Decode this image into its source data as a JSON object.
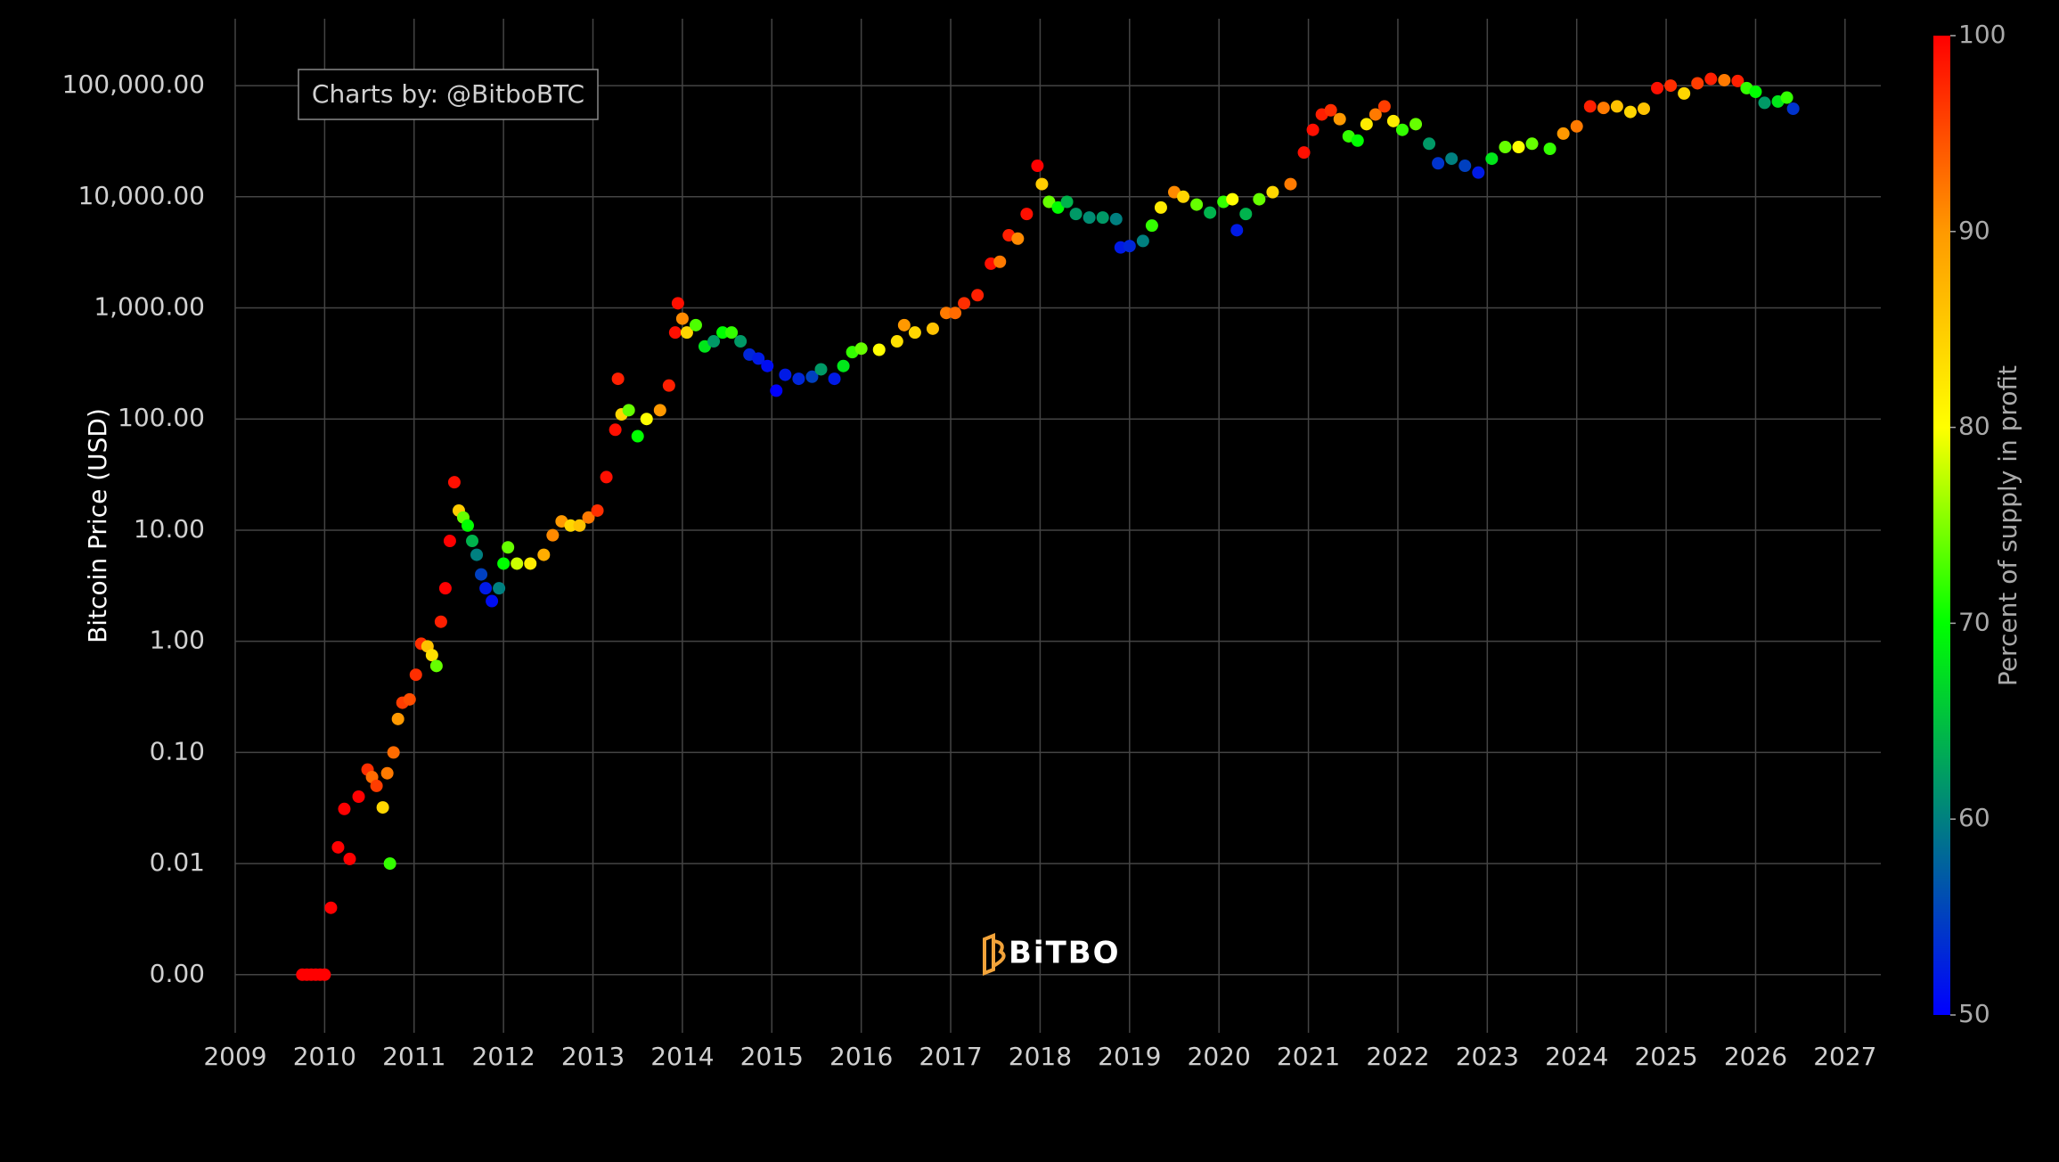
{
  "chart_data": {
    "type": "scatter",
    "y_axis_label": "Bitcoin Price (USD)",
    "annotation": "Charts by: @BitboBTC",
    "watermark": "BiTBO",
    "colorbar_title": "Percent of supply in profit",
    "ylog": true,
    "grid": true,
    "xlim": [
      2009,
      2027.4
    ],
    "xticks": [
      2009,
      2010,
      2011,
      2012,
      2013,
      2014,
      2015,
      2016,
      2017,
      2018,
      2019,
      2020,
      2021,
      2022,
      2023,
      2024,
      2025,
      2026,
      2027
    ],
    "ylim": [
      0.0003,
      400000
    ],
    "yticks": [
      {
        "value": 0.001,
        "label": "0.00"
      },
      {
        "value": 0.01,
        "label": "0.01"
      },
      {
        "value": 0.1,
        "label": "0.10"
      },
      {
        "value": 1,
        "label": "1.00"
      },
      {
        "value": 10,
        "label": "10.00"
      },
      {
        "value": 100,
        "label": "100.00"
      },
      {
        "value": 1000,
        "label": "1,000.00"
      },
      {
        "value": 10000,
        "label": "10,000.00"
      },
      {
        "value": 100000,
        "label": "100,000.00"
      }
    ],
    "zlim": [
      50,
      100
    ],
    "zticks": [
      50,
      60,
      70,
      80,
      90,
      100
    ],
    "colorscale": [
      "#0000ff",
      "#008080",
      "#00ff00",
      "#ffff00",
      "#ff9900",
      "#ff0000"
    ],
    "x": [
      2009.75,
      2009.8,
      2009.85,
      2009.9,
      2009.95,
      2010.0,
      2010.07,
      2010.15,
      2010.22,
      2010.28,
      2010.38,
      2010.48,
      2010.53,
      2010.58,
      2010.65,
      2010.7,
      2010.73,
      2010.77,
      2010.82,
      2010.87,
      2010.95,
      2011.02,
      2011.08,
      2011.15,
      2011.2,
      2011.25,
      2011.3,
      2011.35,
      2011.4,
      2011.45,
      2011.5,
      2011.55,
      2011.6,
      2011.65,
      2011.7,
      2011.75,
      2011.8,
      2011.87,
      2011.95,
      2012.0,
      2012.05,
      2012.15,
      2012.3,
      2012.45,
      2012.55,
      2012.65,
      2012.75,
      2012.85,
      2012.95,
      2013.05,
      2013.15,
      2013.25,
      2013.28,
      2013.32,
      2013.4,
      2013.5,
      2013.6,
      2013.75,
      2013.85,
      2013.92,
      2013.95,
      2014.0,
      2014.05,
      2014.15,
      2014.25,
      2014.35,
      2014.45,
      2014.55,
      2014.65,
      2014.75,
      2014.85,
      2014.95,
      2015.05,
      2015.15,
      2015.3,
      2015.45,
      2015.55,
      2015.7,
      2015.8,
      2015.9,
      2016.0,
      2016.2,
      2016.4,
      2016.48,
      2016.6,
      2016.8,
      2016.95,
      2017.05,
      2017.15,
      2017.3,
      2017.45,
      2017.55,
      2017.65,
      2017.75,
      2017.85,
      2017.97,
      2018.02,
      2018.1,
      2018.2,
      2018.3,
      2018.4,
      2018.55,
      2018.7,
      2018.85,
      2018.9,
      2019.0,
      2019.15,
      2019.25,
      2019.35,
      2019.5,
      2019.6,
      2019.75,
      2019.9,
      2020.05,
      2020.15,
      2020.2,
      2020.3,
      2020.45,
      2020.6,
      2020.8,
      2020.95,
      2021.05,
      2021.15,
      2021.25,
      2021.35,
      2021.45,
      2021.55,
      2021.65,
      2021.75,
      2021.85,
      2021.95,
      2022.05,
      2022.2,
      2022.35,
      2022.45,
      2022.6,
      2022.75,
      2022.9,
      2023.05,
      2023.2,
      2023.35,
      2023.5,
      2023.7,
      2023.85,
      2024.0,
      2024.15,
      2024.3,
      2024.45,
      2024.6,
      2024.75,
      2024.9,
      2025.05,
      2025.2,
      2025.35,
      2025.5,
      2025.65,
      2025.8,
      2025.9,
      2026.0,
      2026.1,
      2026.25,
      2026.35,
      2026.42
    ],
    "values": [
      0.001,
      0.001,
      0.001,
      0.001,
      0.001,
      0.001,
      0.004,
      0.014,
      0.031,
      0.011,
      0.04,
      0.07,
      0.06,
      0.05,
      0.032,
      0.065,
      0.01,
      0.1,
      0.2,
      0.28,
      0.3,
      0.5,
      0.95,
      0.9,
      0.75,
      0.6,
      1.5,
      3,
      8,
      27,
      15,
      13,
      11,
      8,
      6,
      4,
      3,
      2.3,
      3,
      5,
      7,
      5,
      5,
      6,
      9,
      12,
      11,
      11,
      13,
      15,
      30,
      80,
      230,
      110,
      120,
      70,
      100,
      120,
      200,
      600,
      1100,
      800,
      600,
      700,
      450,
      500,
      600,
      600,
      500,
      380,
      350,
      300,
      180,
      250,
      230,
      240,
      280,
      230,
      300,
      400,
      430,
      420,
      500,
      700,
      600,
      650,
      900,
      900,
      1100,
      1300,
      2500,
      2600,
      4500,
      4200,
      7000,
      19000,
      13000,
      9000,
      8000,
      9000,
      7000,
      6500,
      6500,
      6300,
      3500,
      3600,
      4000,
      5500,
      8000,
      11000,
      10000,
      8500,
      7200,
      9000,
      9500,
      5000,
      7000,
      9500,
      11000,
      13000,
      25000,
      40000,
      55000,
      60000,
      50000,
      35000,
      32000,
      45000,
      55000,
      65000,
      48000,
      40000,
      45000,
      30000,
      20000,
      22000,
      19000,
      16500,
      22000,
      28000,
      28000,
      30000,
      27000,
      37000,
      43000,
      65000,
      63000,
      65000,
      58000,
      62000,
      95000,
      100000,
      85000,
      105000,
      115000,
      112000,
      110000,
      95000,
      88000,
      70000,
      72000,
      78000,
      62000
    ],
    "color_values": [
      100,
      100,
      100,
      100,
      100,
      100,
      100,
      100,
      100,
      100,
      100,
      97,
      93,
      96,
      84,
      92,
      72,
      93,
      90,
      96,
      95,
      97,
      97,
      86,
      83,
      74,
      98,
      100,
      100,
      99,
      85,
      74,
      70,
      64,
      60,
      55,
      52,
      51,
      60,
      70,
      74,
      78,
      82,
      88,
      91,
      90,
      84,
      86,
      92,
      97,
      99,
      99,
      98,
      84,
      74,
      70,
      80,
      90,
      98,
      99,
      99,
      91,
      84,
      73,
      68,
      62,
      70,
      72,
      62,
      53,
      52,
      51,
      50,
      52,
      53,
      55,
      62,
      52,
      68,
      72,
      74,
      80,
      83,
      90,
      84,
      86,
      92,
      93,
      97,
      98,
      99,
      92,
      98,
      91,
      99,
      100,
      85,
      74,
      70,
      64,
      62,
      61,
      62,
      60,
      52,
      53,
      60,
      72,
      82,
      91,
      84,
      74,
      64,
      72,
      80,
      52,
      64,
      74,
      84,
      92,
      99,
      99,
      98,
      97,
      90,
      72,
      70,
      82,
      92,
      96,
      82,
      72,
      74,
      62,
      54,
      60,
      55,
      52,
      68,
      74,
      80,
      74,
      72,
      90,
      92,
      98,
      92,
      86,
      84,
      86,
      99,
      97,
      84,
      96,
      98,
      92,
      98,
      72,
      70,
      62,
      68,
      72,
      54
    ]
  }
}
